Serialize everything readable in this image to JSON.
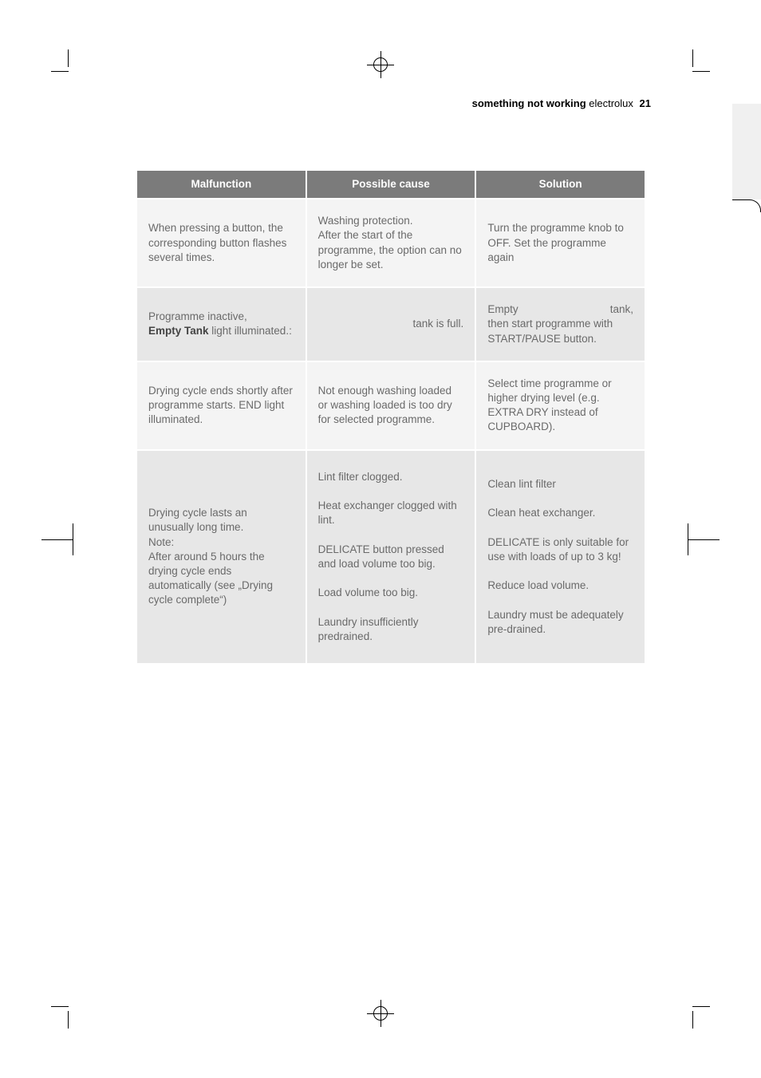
{
  "page_header": {
    "section": "something not working",
    "brand": "electrolux",
    "page_num": "21"
  },
  "table": {
    "header_bg": "#7b7b7b",
    "row_light": "#f4f4f4",
    "row_dark": "#e7e7e7",
    "text_color": "#6a6a6a",
    "header_text_color": "#ffffff",
    "headers": {
      "col1": "Malfunction",
      "col2": "Possible cause",
      "col3": "Solution"
    },
    "rows": [
      {
        "malfunction": "When pressing a button, the corresponding button flashes several times.",
        "cause": "Washing protection.\nAfter the start of the programme, the option can no longer be set.",
        "solution": "Turn the programme knob to OFF. Set the programme again"
      },
      {
        "malfunction_pre": "Programme inactive,",
        "malfunction_bold": "Empty Tank",
        "malfunction_post": " light illuminated.:",
        "cause": "tank is full.",
        "solution_left": "Empty",
        "solution_right": "tank,",
        "solution_rest": "then start programme with START/PAUSE  button."
      },
      {
        "malfunction": "Drying cycle ends shortly after programme starts. END  light illuminated.",
        "cause": "Not enough washing loaded\nor washing loaded is too dry for selected programme.",
        "solution": "Select time programme or higher drying level (e.g. EXTRA DRY  instead of CUPBOARD)."
      },
      {
        "malfunction": "Drying cycle lasts an unusually long time.\nNote:\nAfter around 5 hours the drying cycle ends automatically (see „Drying cycle complete“)",
        "cause": "Lint filter clogged.\n\nHeat exchanger clogged with lint.\n\nDELICATE  button pressed and load volume too big.\n\nLoad volume too big.\n\nLaundry insufficiently predrained.",
        "solution": "Clean lint filter\n\nClean heat exchanger.\n\nDELICATE is only suitable for use with loads of up to 3 kg!\n\nReduce load volume.\n\nLaundry must be adequately pre-drained."
      }
    ]
  }
}
